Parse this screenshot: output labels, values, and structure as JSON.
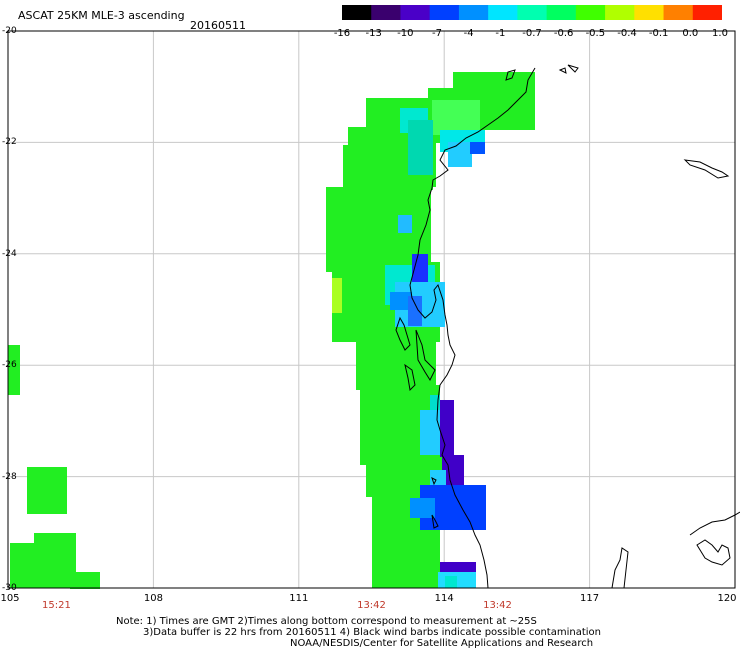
{
  "title": "ASCAT 25KM MLE-3 ascending",
  "date": "20160511",
  "colorbar": {
    "labels": [
      "-16",
      "-13",
      "-10",
      "-7",
      "-4",
      "-1",
      "-0.7",
      "-0.6",
      "-0.5",
      "-0.4",
      "-0.1",
      "0.0",
      "1.0"
    ],
    "colors": [
      "#000000",
      "#3a006e",
      "#4a00c8",
      "#0040ff",
      "#0090ff",
      "#00e5ff",
      "#00ffb0",
      "#00ff60",
      "#40ff00",
      "#b0ff00",
      "#ffe000",
      "#ff8000",
      "#ff2000"
    ]
  },
  "map": {
    "lon_labels": [
      "105",
      "108",
      "111",
      "114",
      "117",
      "120"
    ],
    "lat_labels": [
      "-20",
      "-22",
      "-24",
      "-26",
      "-28",
      "-30"
    ],
    "lon_range": [
      105,
      120
    ],
    "lat_range": [
      -30,
      -20
    ],
    "times": [
      {
        "text": "15:21",
        "lon": 106
      },
      {
        "text": "13:42",
        "lon": 112.5
      },
      {
        "text": "13:42",
        "lon": 115.1
      }
    ]
  },
  "notes": [
    "Note: 1) Times are GMT 2)Times along bottom correspond to measurement at ~25S",
    "3)Data buffer is 22 hrs from 20160511 4) Black wind barbs indicate possible contamination",
    "NOAA/NESDIS/Center for Satellite Applications and Research"
  ]
}
